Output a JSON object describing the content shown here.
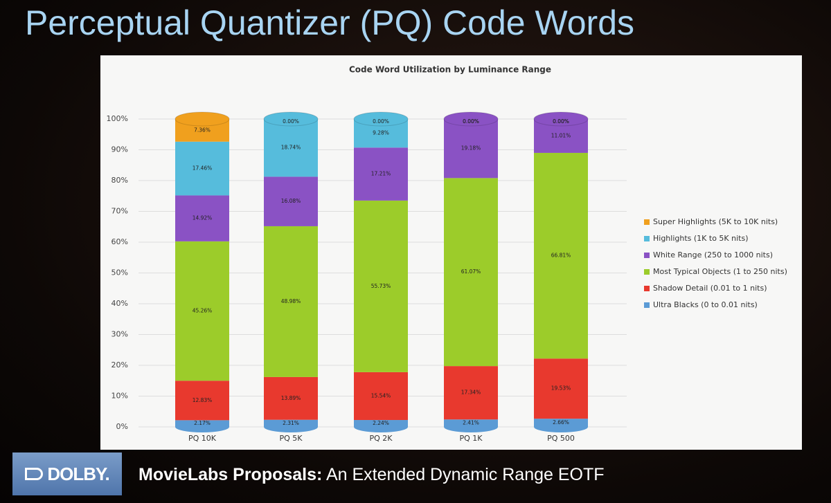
{
  "slide": {
    "title": "Perceptual Quantizer (PQ) Code Words",
    "logo": "DOLBY.",
    "footer_bold": "MovieLabs Proposals:",
    "footer_text": "An Extended Dynamic Range EOTF"
  },
  "chart_data": {
    "type": "stacked_bar",
    "title": "Code Word Utilization by Luminance Range",
    "categories": [
      "PQ 10K",
      "PQ 5K",
      "PQ 2K",
      "PQ 1K",
      "PQ 500"
    ],
    "ylim": [
      0,
      100
    ],
    "yticks": [
      {
        "value": 0,
        "label": "0%"
      },
      {
        "value": 10,
        "label": "10%"
      },
      {
        "value": 20,
        "label": "20%"
      },
      {
        "value": 30,
        "label": "30%"
      },
      {
        "value": 40,
        "label": "40%"
      },
      {
        "value": 50,
        "label": "50%"
      },
      {
        "value": 60,
        "label": "60%"
      },
      {
        "value": 70,
        "label": "70%"
      },
      {
        "value": 80,
        "label": "80%"
      },
      {
        "value": 90,
        "label": "90%"
      },
      {
        "value": 100,
        "label": "100%"
      }
    ],
    "grid": true,
    "legend": "right",
    "series": [
      {
        "name": "Ultra Blacks (0 to 0.01 nits)",
        "color": "#5b9bd5",
        "values": [
          2.17,
          2.31,
          2.24,
          2.41,
          2.66
        ],
        "value_labels": [
          "2.17%",
          "2.31%",
          "2.24%",
          "2.41%",
          "2.66%"
        ]
      },
      {
        "name": "Shadow Detail (0.01 to 1 nits)",
        "color": "#e8392e",
        "values": [
          12.83,
          13.89,
          15.54,
          17.34,
          19.53
        ],
        "value_labels": [
          "12.83%",
          "13.89%",
          "15.54%",
          "17.34%",
          "19.53%"
        ]
      },
      {
        "name": "Most Typical Objects (1 to 250 nits)",
        "color": "#9ccc2a",
        "values": [
          45.26,
          48.98,
          55.73,
          61.07,
          66.81
        ],
        "value_labels": [
          "45.26%",
          "48.98%",
          "55.73%",
          "61.07%",
          "66.81%"
        ]
      },
      {
        "name": "White Range (250 to 1000 nits)",
        "color": "#8a52c4",
        "values": [
          14.92,
          16.08,
          17.21,
          19.18,
          11.01
        ],
        "value_labels": [
          "14.92%",
          "16.08%",
          "17.21%",
          "19.18%",
          "11.01%"
        ]
      },
      {
        "name": "Highlights (1K to 5K nits)",
        "color": "#56bcdc",
        "values": [
          17.46,
          18.74,
          9.28,
          0.0,
          0.0
        ],
        "value_labels": [
          "17.46%",
          "18.74%",
          "9.28%",
          "0.00%",
          "0.00%"
        ]
      },
      {
        "name": "Super Highlights (5K to 10K nits)",
        "color": "#f0a01e",
        "values": [
          7.36,
          0.0,
          0.0,
          0.0,
          0.0
        ],
        "value_labels": [
          "7.36%",
          "0.00%",
          "0.00%",
          "0.00%",
          "0.00%"
        ]
      }
    ]
  }
}
